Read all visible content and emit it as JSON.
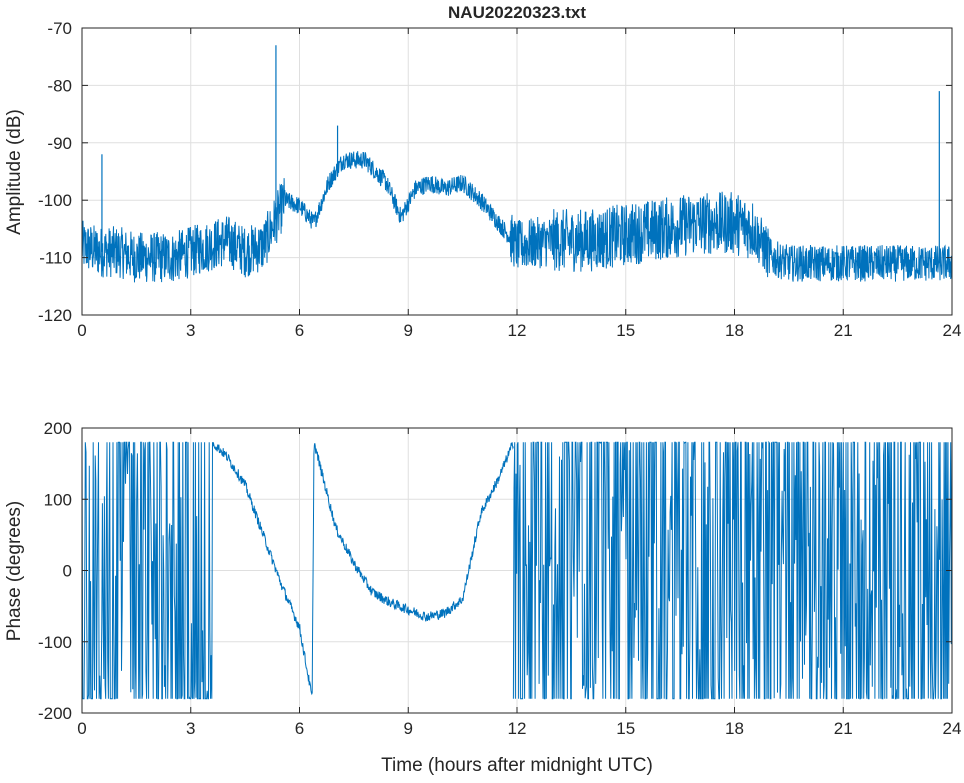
{
  "chart_data": [
    {
      "type": "line",
      "title": "NAU20220323.txt",
      "xlabel": "",
      "ylabel": "Amplitude (dB)",
      "xlim": [
        0,
        24
      ],
      "ylim": [
        -120,
        -70
      ],
      "xticks": [
        "0",
        "3",
        "6",
        "9",
        "12",
        "15",
        "18",
        "21",
        "24"
      ],
      "yticks": [
        "-120",
        "-110",
        "-100",
        "-90",
        "-80",
        "-70"
      ],
      "grid": true,
      "color": "#0072BD",
      "series": [
        {
          "x": [
            0,
            0.5,
            1,
            1.5,
            2,
            2.5,
            3,
            3.5,
            4,
            4.5,
            5,
            5.3,
            5.6,
            6,
            6.4,
            6.8,
            7.2,
            7.8,
            8.4,
            8.8,
            9.2,
            9.6,
            10,
            10.5,
            11,
            11.5,
            12,
            13,
            14,
            15,
            16,
            17,
            18,
            18.5,
            19,
            19.5,
            20,
            21,
            22,
            23,
            23.5,
            24
          ],
          "y": [
            -108,
            -109,
            -109,
            -110,
            -110,
            -110,
            -109,
            -108,
            -107,
            -109,
            -108,
            -104,
            -100,
            -101,
            -104,
            -97,
            -93,
            -93,
            -97,
            -103,
            -98,
            -97,
            -98,
            -97,
            -100,
            -104,
            -108,
            -107,
            -107,
            -106,
            -105,
            -104,
            -104,
            -105,
            -110,
            -111,
            -111,
            -111,
            -111,
            -111,
            -111,
            -111
          ]
        }
      ],
      "spikes": [
        {
          "x": 0.55,
          "y": -92
        },
        {
          "x": 5.35,
          "y": -73
        },
        {
          "x": 7.05,
          "y": -87
        },
        {
          "x": 23.65,
          "y": -81
        }
      ]
    },
    {
      "type": "line",
      "title": "",
      "xlabel": "Time (hours after midnight UTC)",
      "ylabel": "Phase (degrees)",
      "xlim": [
        0,
        24
      ],
      "ylim": [
        -200,
        200
      ],
      "xticks": [
        "0",
        "3",
        "6",
        "9",
        "12",
        "15",
        "18",
        "21",
        "24"
      ],
      "yticks": [
        "-200",
        "-100",
        "0",
        "100",
        "200"
      ],
      "grid": true,
      "color": "#0072BD",
      "series": [
        {
          "x": [
            3.6,
            4,
            4.5,
            5,
            5.5,
            6,
            6.35,
            6.4,
            7,
            7.5,
            8,
            8.5,
            9,
            9.5,
            10,
            10.5,
            11,
            11.5,
            11.9
          ],
          "y": [
            180,
            160,
            120,
            50,
            -20,
            -80,
            -180,
            180,
            60,
            10,
            -30,
            -45,
            -55,
            -65,
            -60,
            -40,
            80,
            130,
            180
          ]
        }
      ],
      "noisy_segments": [
        [
          0,
          3.6
        ],
        [
          11.9,
          24
        ]
      ],
      "wrap_limits": [
        -180,
        180
      ]
    }
  ]
}
